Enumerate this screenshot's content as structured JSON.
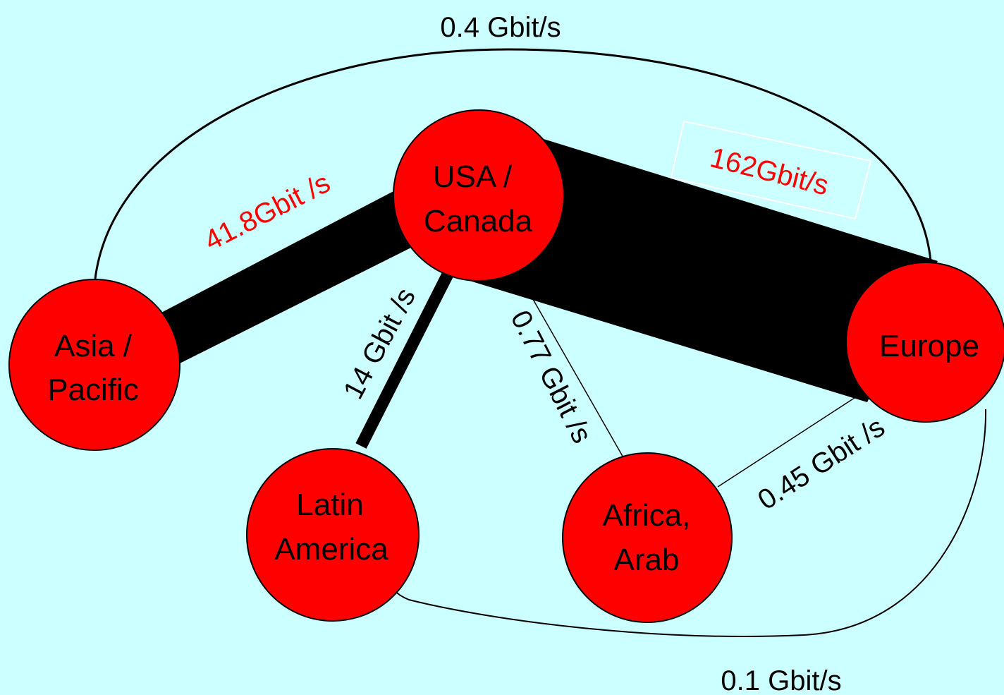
{
  "diagram": {
    "background": "#ccffff",
    "node_color": "#ff0000",
    "nodes": [
      {
        "id": "usa",
        "lines": [
          "USA /",
          "Canada"
        ]
      },
      {
        "id": "europe",
        "lines": [
          "Europe"
        ]
      },
      {
        "id": "asia",
        "lines": [
          "Asia /",
          "Pacific"
        ]
      },
      {
        "id": "latin",
        "lines": [
          "Latin",
          "America"
        ]
      },
      {
        "id": "africa",
        "lines": [
          "Africa,",
          "Arab"
        ]
      }
    ],
    "links": [
      {
        "id": "usa-europe",
        "from": "USA / Canada",
        "to": "Europe",
        "label": "162Gbit/s",
        "value_gbit_s": 162
      },
      {
        "id": "usa-asia",
        "from": "USA / Canada",
        "to": "Asia / Pacific",
        "label": "41.8Gbit /s",
        "value_gbit_s": 41.8
      },
      {
        "id": "usa-latin",
        "from": "USA / Canada",
        "to": "Latin America",
        "label": "14 Gbit /s",
        "value_gbit_s": 14
      },
      {
        "id": "usa-africa",
        "from": "USA / Canada",
        "to": "Africa, Arab",
        "label": "0.77 Gbit /s",
        "value_gbit_s": 0.77
      },
      {
        "id": "europe-africa",
        "from": "Europe",
        "to": "Africa, Arab",
        "label": "0.45 Gbit /s",
        "value_gbit_s": 0.45
      },
      {
        "id": "asia-europe",
        "from": "Asia / Pacific",
        "to": "Europe",
        "label": "0.4 Gbit/s",
        "value_gbit_s": 0.4
      },
      {
        "id": "latin-europe",
        "from": "Latin America",
        "to": "Europe",
        "label": "0.1 Gbit/s",
        "value_gbit_s": 0.1
      }
    ]
  }
}
